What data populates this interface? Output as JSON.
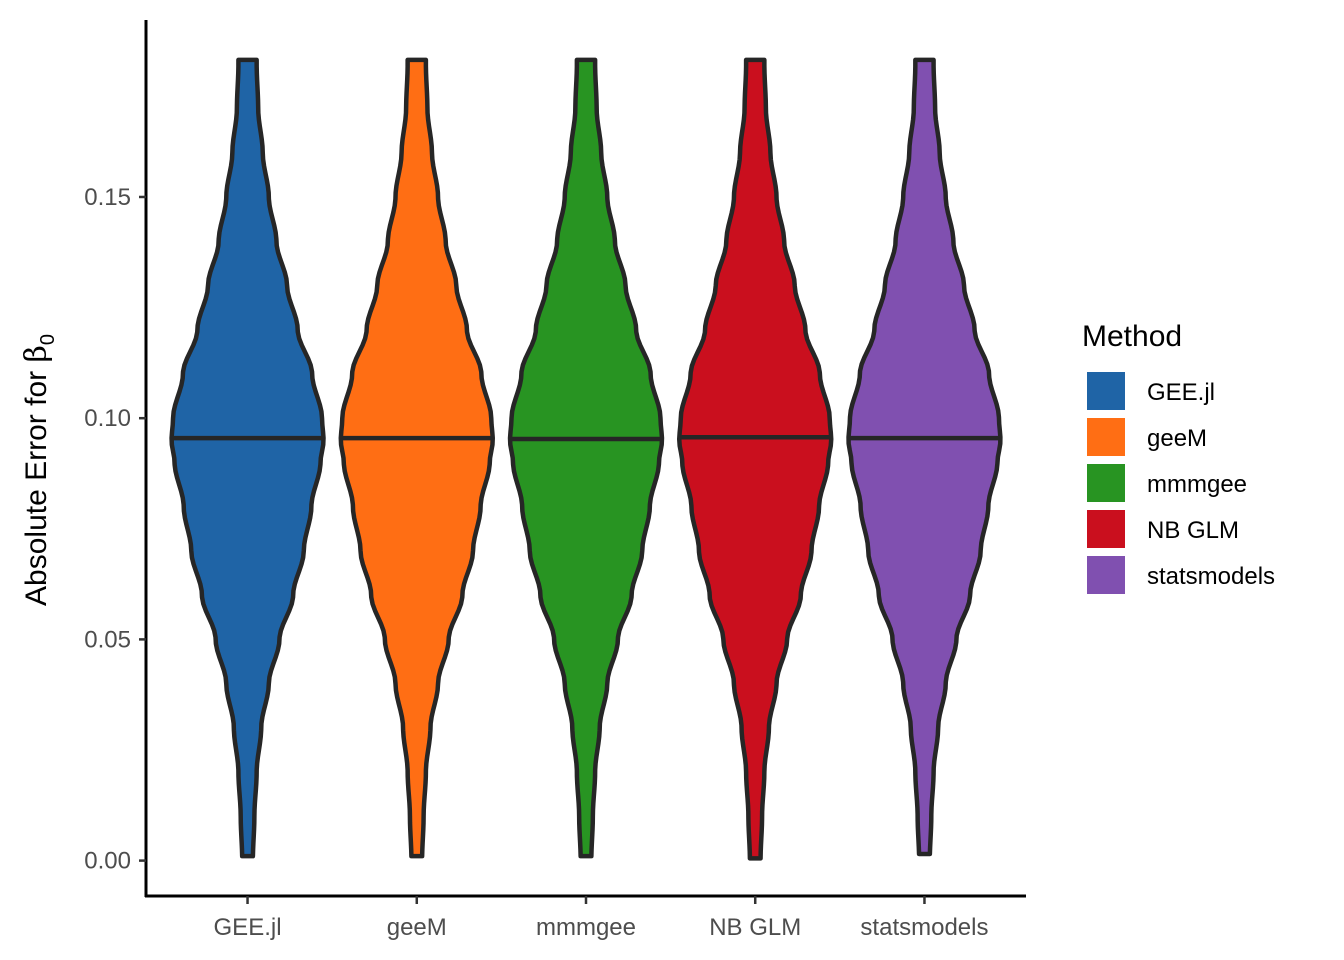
{
  "chart_data": {
    "type": "violin",
    "title": "",
    "xlabel": "",
    "ylabel": "Absolute Error for ",
    "ylabel_symbol": "β",
    "ylabel_subscript": "0",
    "ylim": [
      -0.008,
      0.19
    ],
    "yticks": [
      "0.00",
      "0.05",
      "0.10",
      "0.15"
    ],
    "ytick_values": [
      0.0,
      0.05,
      0.1,
      0.15
    ],
    "grid": false,
    "legend_title": "Method",
    "legend_position": "right",
    "categories": [
      "GEE.jl",
      "geeM",
      "mmmgee",
      "NB GLM",
      "statsmodels"
    ],
    "series": [
      {
        "name": "GEE.jl",
        "color": "#1F64A6",
        "min": 0.001,
        "max": 0.181,
        "median": 0.0955
      },
      {
        "name": "geeM",
        "color": "#FF6E14",
        "min": 0.001,
        "max": 0.181,
        "median": 0.0955
      },
      {
        "name": "mmmgee",
        "color": "#289422",
        "min": 0.001,
        "max": 0.181,
        "median": 0.0953
      },
      {
        "name": "NB GLM",
        "color": "#CA0F1E",
        "min": 0.0005,
        "max": 0.181,
        "median": 0.0957
      },
      {
        "name": "statsmodels",
        "color": "#8050B0",
        "min": 0.0015,
        "max": 0.181,
        "median": 0.0955
      }
    ],
    "density_profile": {
      "y": [
        0.0,
        0.01,
        0.02,
        0.03,
        0.04,
        0.05,
        0.06,
        0.07,
        0.08,
        0.09,
        0.095,
        0.1,
        0.11,
        0.12,
        0.13,
        0.14,
        0.15,
        0.16,
        0.17,
        0.18
      ],
      "relative_width": [
        0.07,
        0.09,
        0.12,
        0.18,
        0.28,
        0.42,
        0.6,
        0.74,
        0.84,
        0.96,
        1.0,
        0.98,
        0.85,
        0.66,
        0.52,
        0.38,
        0.28,
        0.2,
        0.14,
        0.12
      ]
    },
    "outline_color": "#262626"
  }
}
